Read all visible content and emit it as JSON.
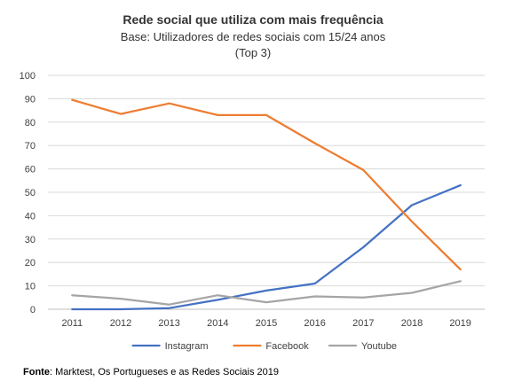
{
  "chart_data": {
    "type": "line",
    "title": "Rede social que utiliza com mais frequência",
    "subtitle_line1": "Base: Utilizadores de redes sociais com 15/24 anos",
    "subtitle_line2": "(Top 3)",
    "x": [
      "2011",
      "2012",
      "2013",
      "2014",
      "2015",
      "2016",
      "2017",
      "2018",
      "2019"
    ],
    "y_ticks": [
      "0",
      "10",
      "20",
      "30",
      "40",
      "50",
      "60",
      "70",
      "80",
      "90",
      "100"
    ],
    "ylim": [
      0,
      100
    ],
    "grid": true,
    "legend_position": "bottom",
    "series": [
      {
        "name": "Instagram",
        "color": "#4472C4",
        "values": [
          0,
          0,
          0.5,
          4,
          8,
          11,
          26.5,
          44.5,
          53
        ]
      },
      {
        "name": "Facebook",
        "color": "#ED7D31",
        "values": [
          89.5,
          83.5,
          88,
          83,
          83,
          71,
          59.5,
          37.5,
          17
        ]
      },
      {
        "name": "Youtube",
        "color": "#A5A5A5",
        "values": [
          6,
          4.5,
          2,
          6,
          3,
          5.5,
          5,
          7,
          12
        ]
      }
    ]
  },
  "source": {
    "label": "Fonte",
    "text": ": Marktest, Os Portugueses e as Redes Sociais 2019"
  }
}
